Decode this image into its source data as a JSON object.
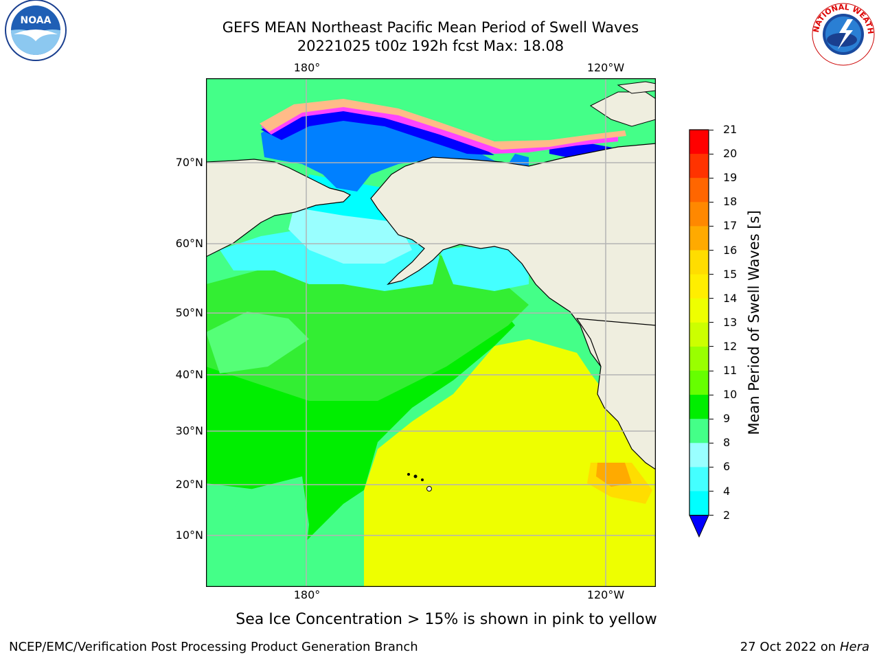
{
  "title": {
    "line1": "GEFS MEAN Northeast Pacific Mean Period of Swell Waves",
    "line2": "20221025 t00z 192h fcst   Max: 18.08"
  },
  "map": {
    "lon_labels": [
      "180°",
      "120°W"
    ],
    "lat_labels": [
      "70°N",
      "60°N",
      "50°N",
      "40°N",
      "30°N",
      "20°N",
      "10°N"
    ],
    "grid": true,
    "land_color": "#efeedf"
  },
  "colorbar": {
    "label": "Mean Period of Swell Waves [s]",
    "ticks": [
      "21",
      "20",
      "19",
      "18",
      "17",
      "16",
      "15",
      "14",
      "13",
      "12",
      "11",
      "10",
      "9",
      "8",
      "6",
      "4",
      "2"
    ],
    "colors": [
      "#ff0000",
      "#ff3300",
      "#ff6600",
      "#ff8800",
      "#ffaa00",
      "#ffdd00",
      "#ffee00",
      "#eeff00",
      "#ccff00",
      "#99ff00",
      "#66ff00",
      "#00ee00",
      "#44ff88",
      "#99ffff",
      "#44ffff",
      "#00ffff",
      "#0080ff"
    ],
    "extend_color": "#0000ff"
  },
  "note": "Sea Ice Concentration > 15% is shown in pink to yellow",
  "footer": {
    "left": "NCEP/EMC/Verification Post Processing Product Generation Branch",
    "right_date": "27 Oct 2022 on",
    "right_host": "Hera"
  },
  "logos": {
    "left": "NOAA",
    "right_text": "NATIONAL WEATHER SERVICE"
  }
}
